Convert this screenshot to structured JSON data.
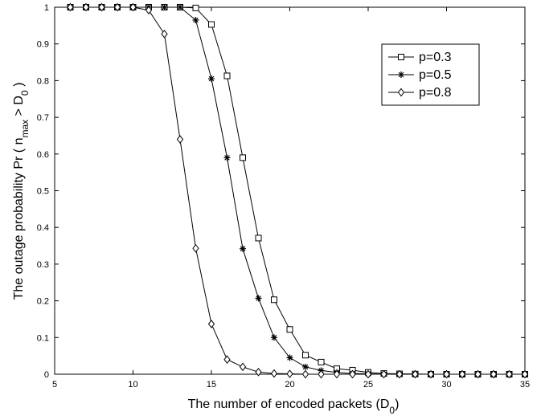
{
  "chart_data": {
    "type": "line",
    "xlabel": "The number of encoded packets (D",
    "xlabel_sub": "0",
    "xlabel_end": ")",
    "ylabel_parts": [
      "The outage probability Pr ( n",
      "max",
      " > D",
      "0",
      " )"
    ],
    "xlim": [
      5,
      35
    ],
    "ylim": [
      0,
      1
    ],
    "x_ticks": [
      5,
      10,
      15,
      20,
      25,
      30,
      35
    ],
    "y_ticks": [
      0,
      0.1,
      0.2,
      0.3,
      0.4,
      0.5,
      0.6,
      0.7,
      0.8,
      0.9,
      1
    ],
    "y_tick_labels": [
      "0",
      "0.1",
      "0.2",
      "0.3",
      "0.4",
      "0.5",
      "0.6",
      "0.7",
      "0.8",
      "0.9",
      "1"
    ],
    "grid": false,
    "legend_position": "top-right",
    "x": [
      6,
      7,
      8,
      9,
      10,
      11,
      12,
      13,
      14,
      15,
      16,
      17,
      18,
      19,
      20,
      21,
      22,
      23,
      24,
      25,
      26,
      27,
      28,
      29,
      30,
      31,
      32,
      33,
      34,
      35
    ],
    "series": [
      {
        "name": "p=0.3",
        "marker": "square",
        "values": [
          1,
          1,
          1,
          1,
          1,
          1,
          1,
          1,
          0.998,
          0.953,
          0.813,
          0.59,
          0.371,
          0.203,
          0.122,
          0.052,
          0.033,
          0.015,
          0.011,
          0.005,
          0.002,
          0.001,
          0.0005,
          0,
          0,
          0,
          0,
          0,
          0,
          0
        ]
      },
      {
        "name": "p=0.5",
        "marker": "star",
        "values": [
          1,
          1,
          1,
          1,
          1,
          1,
          1,
          1,
          0.965,
          0.805,
          0.59,
          0.342,
          0.207,
          0.1,
          0.045,
          0.02,
          0.01,
          0.005,
          0.002,
          0.001,
          0,
          0,
          0,
          0,
          0,
          0,
          0,
          0,
          0,
          0
        ]
      },
      {
        "name": "p=0.8",
        "marker": "diamond",
        "values": [
          1,
          1,
          1,
          1,
          1,
          0.992,
          0.927,
          0.64,
          0.343,
          0.137,
          0.04,
          0.02,
          0.006,
          0.002,
          0.001,
          0,
          0,
          0,
          0,
          0,
          0,
          0,
          0,
          0,
          0,
          0,
          0,
          0,
          0,
          0
        ]
      }
    ]
  }
}
